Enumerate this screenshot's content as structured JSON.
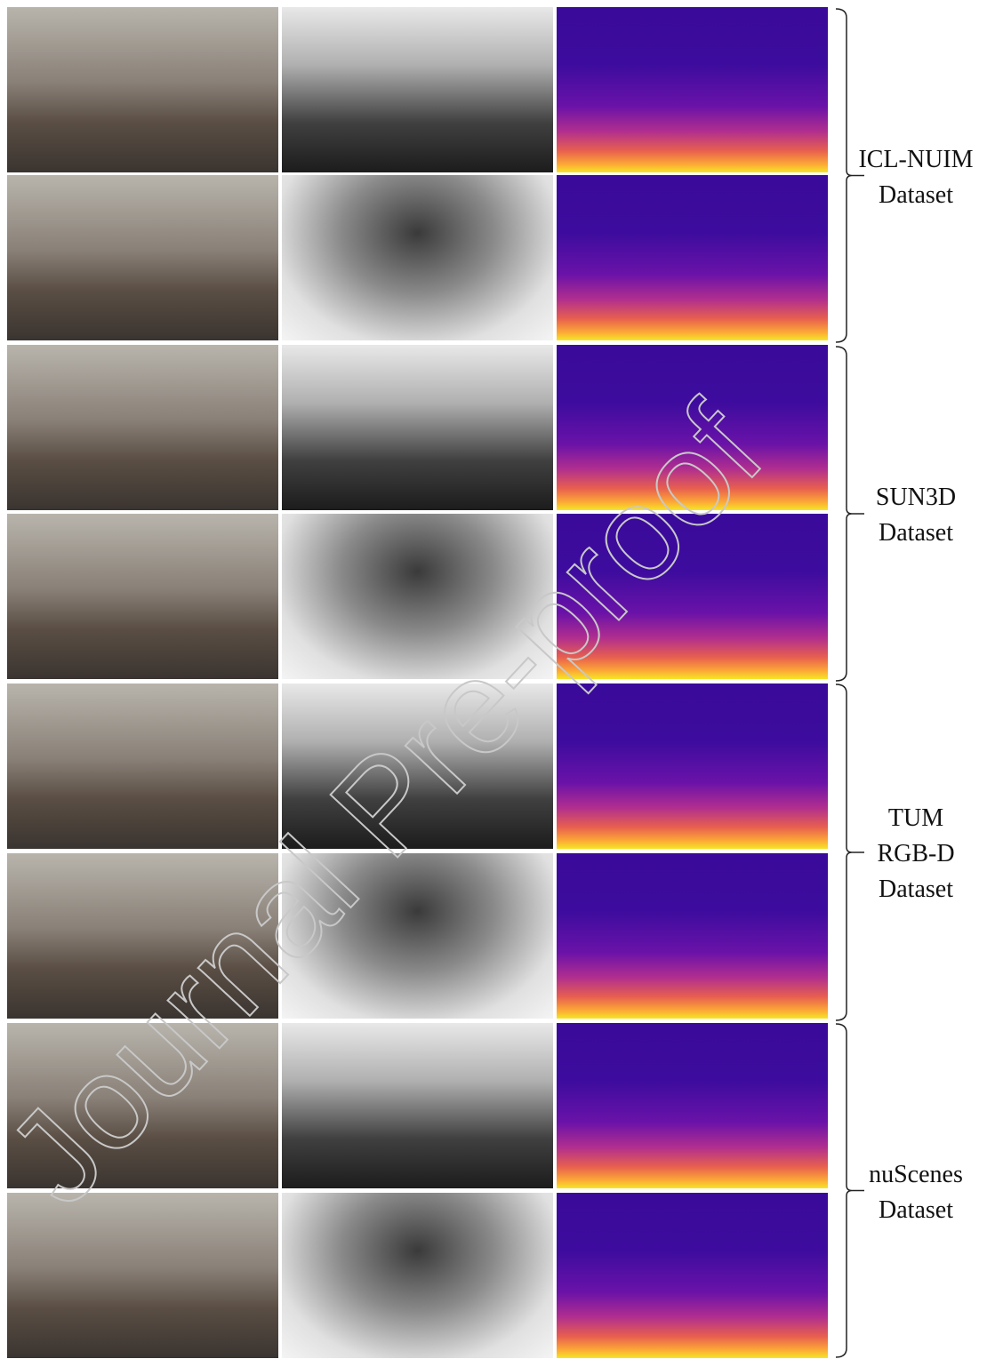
{
  "groups": [
    {
      "lines": [
        "ICL-NUIM",
        "Dataset"
      ]
    },
    {
      "lines": [
        "SUN3D",
        "Dataset"
      ]
    },
    {
      "lines": [
        "TUM",
        "RGB-D",
        "Dataset"
      ]
    },
    {
      "lines": [
        "nuScenes",
        "Dataset"
      ]
    }
  ],
  "watermark": "Journal Pre-proof"
}
